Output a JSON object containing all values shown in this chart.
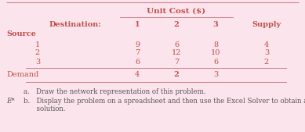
{
  "background_color": "#fce4ec",
  "title": "Unit Cost ($)",
  "destination_label": "Destination:",
  "source_label": "Source",
  "demand_label": "Demand",
  "col_headers": [
    "1",
    "2",
    "3",
    "Supply"
  ],
  "row_labels": [
    "1",
    "2",
    "3"
  ],
  "table_data": [
    [
      "9",
      "6",
      "8",
      "4"
    ],
    [
      "7",
      "12",
      "10",
      "3"
    ],
    [
      "6",
      "7",
      "6",
      "2"
    ]
  ],
  "demand_row": [
    "4",
    "2",
    "3"
  ],
  "note_a": "a.   Draw the network representation of this problem.",
  "note_b": "b.   Display the problem on a spreadsheet and then use the Excel Solver to obtain an optimal",
  "note_b2": "      solution.",
  "note_prefix": "E*",
  "text_color": "#c0504d",
  "line_color": "#d08090",
  "note_text_color": "#555555",
  "top_line_color": "#d08090",
  "font_size_title": 7.5,
  "font_size_body": 7.0,
  "font_size_notes": 6.2
}
